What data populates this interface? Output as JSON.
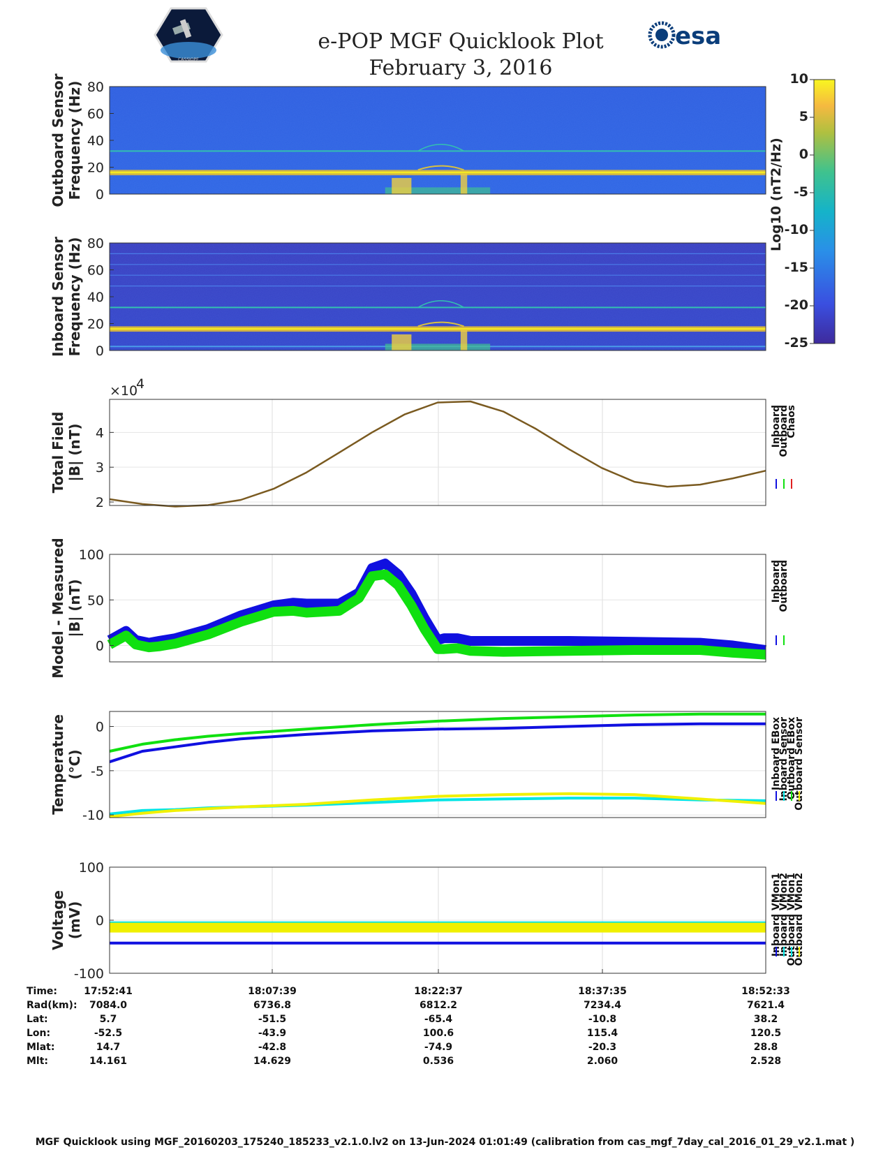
{
  "header": {
    "title_line1": "e-POP MGF Quicklook Plot",
    "title_line2": "February 3, 2016",
    "logo_left_text": "CASSIOPE",
    "logo_right_text": "esa"
  },
  "colorbar": {
    "label": "Log10 (nT2/Hz)",
    "ticks": [
      10,
      5,
      0,
      -5,
      -10,
      -15,
      -20,
      -25
    ],
    "range": [
      -25,
      10
    ]
  },
  "colors": {
    "inboard": "#1010e0",
    "outboard": "#10e010",
    "chaos": "#e02020",
    "cyan": "#00e5e5",
    "yellow": "#f0f000"
  },
  "chart_data": [
    {
      "type": "heatmap",
      "name": "outboard-spectrogram",
      "ylabel_line1": "Outboard Sensor",
      "ylabel_line2": "Frequency (Hz)",
      "ylim": [
        0,
        80
      ],
      "yticks": [
        "80",
        "60",
        "40",
        "20",
        "0"
      ]
    },
    {
      "type": "heatmap",
      "name": "inboard-spectrogram",
      "ylabel_line1": "Inboard Sensor",
      "ylabel_line2": "Frequency (Hz)",
      "ylim": [
        0,
        80
      ],
      "yticks": [
        "80",
        "60",
        "40",
        "20",
        "0"
      ]
    },
    {
      "type": "line",
      "name": "total-field",
      "ylabel_line1": "Total Field",
      "ylabel_line2": "|B| (nT)",
      "multiplier": "×10",
      "multiplier_exp": "4",
      "ylim": [
        1.9,
        4.95
      ],
      "yticks": [
        "4",
        "3",
        "2"
      ],
      "ytick_values": [
        4,
        3,
        2
      ],
      "xlim": [
        0,
        1
      ],
      "legend": [
        "Inboard",
        "Outboard",
        "Chaos"
      ],
      "x": [
        0,
        0.05,
        0.1,
        0.15,
        0.2,
        0.25,
        0.3,
        0.35,
        0.4,
        0.45,
        0.5,
        0.55,
        0.6,
        0.65,
        0.7,
        0.75,
        0.8,
        0.85,
        0.9,
        0.95,
        1
      ],
      "y": [
        2.08,
        1.94,
        1.87,
        1.91,
        2.06,
        2.38,
        2.85,
        3.42,
        4.0,
        4.52,
        4.86,
        4.89,
        4.6,
        4.1,
        3.52,
        2.98,
        2.58,
        2.44,
        2.5,
        2.68,
        2.9
      ]
    },
    {
      "type": "line",
      "name": "model-measured",
      "ylabel_line1": "Model - Measured",
      "ylabel_line2": "|B| (nT)",
      "ylim": [
        -18,
        100
      ],
      "yticks": [
        "100",
        "50",
        "0"
      ],
      "ytick_values": [
        100,
        50,
        0
      ],
      "xlim": [
        0,
        1
      ],
      "legend": [
        "Inboard",
        "Outboard"
      ],
      "x": [
        0,
        0.025,
        0.04,
        0.06,
        0.075,
        0.1,
        0.15,
        0.2,
        0.25,
        0.28,
        0.3,
        0.35,
        0.38,
        0.4,
        0.42,
        0.44,
        0.46,
        0.48,
        0.5,
        0.51,
        0.53,
        0.55,
        0.6,
        0.7,
        0.8,
        0.9,
        0.95,
        1
      ],
      "series": [
        {
          "name": "Inboard",
          "values": [
            6,
            16,
            6,
            3,
            5,
            8,
            18,
            33,
            44,
            47,
            46,
            46,
            58,
            85,
            90,
            78,
            57,
            30,
            6,
            8,
            8,
            5,
            5,
            5,
            4,
            3,
            0,
            -5
          ]
        },
        {
          "name": "Outboard",
          "values": [
            1,
            11,
            1,
            -2,
            -1,
            2,
            12,
            26,
            37,
            38,
            36,
            38,
            52,
            76,
            78,
            66,
            44,
            18,
            -4,
            -4,
            -3,
            -6,
            -7,
            -6,
            -5,
            -5,
            -8,
            -10
          ]
        }
      ]
    },
    {
      "type": "line",
      "name": "temperature",
      "ylabel_line1": "Temperature",
      "ylabel_line2": "(°C)",
      "ylim": [
        -10.3,
        1.7
      ],
      "yticks": [
        "0",
        "-5",
        "-10"
      ],
      "ytick_values": [
        0,
        -5,
        -10
      ],
      "xlim": [
        0,
        1
      ],
      "legend": [
        "Inboard EBox",
        "Inboard Sensor",
        "Outboard EBox",
        "Outboard Sensor"
      ],
      "x": [
        0,
        0.05,
        0.1,
        0.15,
        0.2,
        0.3,
        0.4,
        0.5,
        0.6,
        0.7,
        0.8,
        0.9,
        1
      ],
      "series": [
        {
          "name": "Inboard EBox",
          "values": [
            -4.0,
            -2.8,
            -2.3,
            -1.8,
            -1.4,
            -0.9,
            -0.5,
            -0.3,
            -0.2,
            0.0,
            0.2,
            0.3,
            0.3
          ]
        },
        {
          "name": "Inboard Sensor",
          "values": [
            -9.9,
            -9.5,
            -9.4,
            -9.2,
            -9.1,
            -8.9,
            -8.6,
            -8.3,
            -8.2,
            -8.1,
            -8.1,
            -8.3,
            -8.4
          ]
        },
        {
          "name": "Outboard EBox",
          "values": [
            -2.8,
            -2.0,
            -1.5,
            -1.1,
            -0.8,
            -0.3,
            0.2,
            0.6,
            0.9,
            1.1,
            1.3,
            1.4,
            1.4
          ]
        },
        {
          "name": "Outboard Sensor",
          "values": [
            -10.2,
            -9.8,
            -9.5,
            -9.3,
            -9.1,
            -8.8,
            -8.3,
            -7.9,
            -7.7,
            -7.6,
            -7.7,
            -8.2,
            -8.7
          ]
        }
      ]
    },
    {
      "type": "line",
      "name": "voltage",
      "ylabel_line1": "Voltage",
      "ylabel_line2": "(mV)",
      "ylim": [
        -100,
        100
      ],
      "yticks": [
        "100",
        "0",
        "-100"
      ],
      "ytick_values": [
        100,
        0,
        -100
      ],
      "xlim": [
        0,
        1
      ],
      "legend": [
        "Inboard VMon1",
        "Inboard VMon2",
        "Outboard VMon1",
        "Outboard VMon2"
      ],
      "x": [
        0,
        1
      ],
      "series": [
        {
          "name": "Inboard VMon1",
          "values": [
            -43,
            -43
          ]
        },
        {
          "name": "Inboard VMon2",
          "values": [
            -5,
            -5
          ]
        },
        {
          "name": "Outboard VMon1",
          "values": [
            -5,
            -5
          ]
        },
        {
          "name": "Outboard VMon2",
          "values": [
            -14,
            -14
          ]
        }
      ]
    }
  ],
  "ephemeris": {
    "row_labels": [
      "Time:",
      "Rad(km):",
      "Lat:",
      "Lon:",
      "Mlat:",
      "Mlt:"
    ],
    "columns": [
      [
        "17:52:41",
        "7084.0",
        "5.7",
        "-52.5",
        "14.7",
        "14.161"
      ],
      [
        "18:07:39",
        "6736.8",
        "-51.5",
        "-43.9",
        "-42.8",
        "14.629"
      ],
      [
        "18:22:37",
        "6812.2",
        "-65.4",
        "100.6",
        "-74.9",
        "0.536"
      ],
      [
        "18:37:35",
        "7234.4",
        "-10.8",
        "115.4",
        "-20.3",
        "2.060"
      ],
      [
        "18:52:33",
        "7621.4",
        "38.2",
        "120.5",
        "28.8",
        "2.528"
      ]
    ]
  },
  "footer": "MGF Quicklook using MGF_20160203_175240_185233_v2.1.0.lv2 on 13-Jun-2024 01:01:49 (calibration from cas_mgf_7day_cal_2016_01_29_v2.1.mat )"
}
